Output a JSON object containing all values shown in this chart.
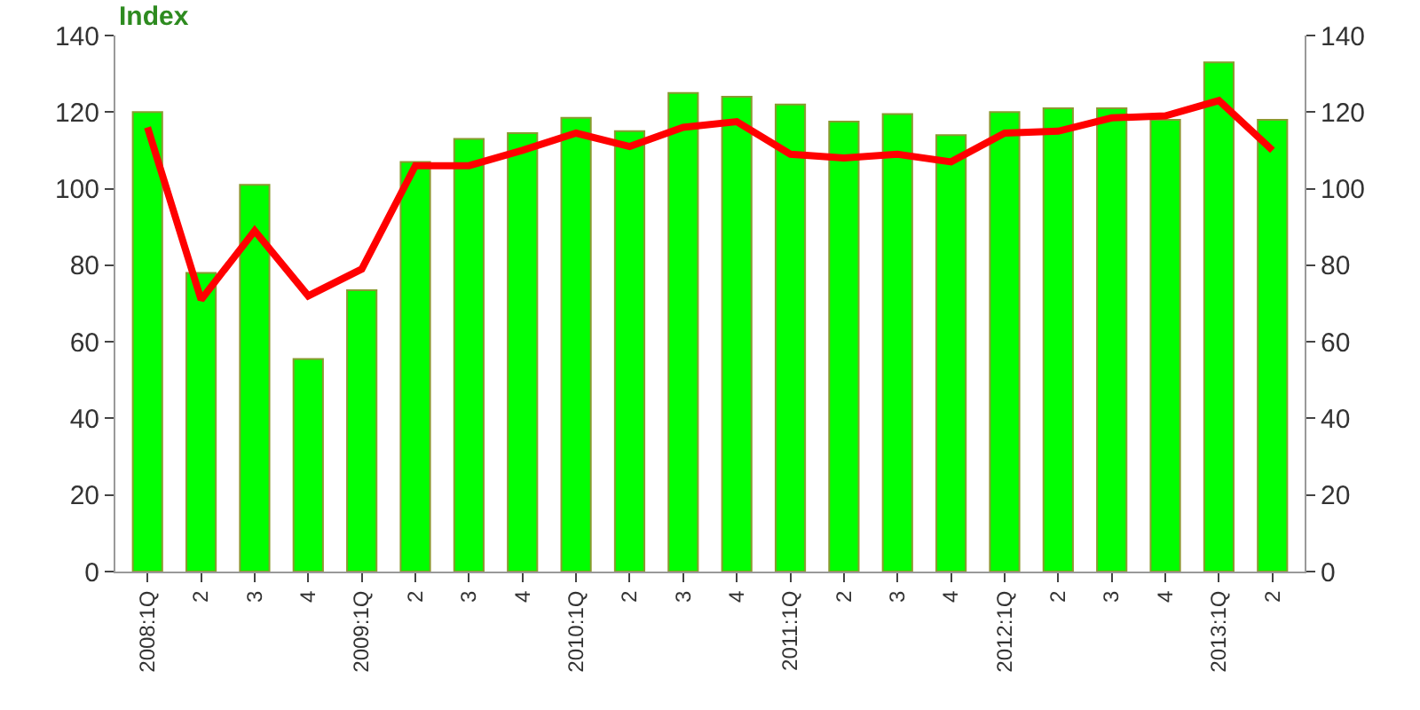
{
  "chart_data": {
    "type": "bar",
    "ylabel": "Index",
    "categories": [
      "2008:1Q",
      "2",
      "3",
      "4",
      "2009:1Q",
      "2",
      "3",
      "4",
      "2010:1Q",
      "2",
      "3",
      "4",
      "2011:1Q",
      "2",
      "3",
      "4",
      "2012:1Q",
      "2",
      "3",
      "4",
      "2013:1Q",
      "2"
    ],
    "series": [
      {
        "color": "#00ff00",
        "values": [
          120,
          78,
          101,
          55.5,
          73.5,
          107,
          113,
          114.5,
          118.5,
          115,
          125,
          124,
          122,
          117.5,
          119.5,
          114,
          120,
          121,
          121,
          118,
          133,
          118
        ]
      },
      {
        "type": "line",
        "axis": "y2",
        "color": "#ff0000",
        "values": [
          116,
          71,
          89,
          72,
          79,
          106,
          106,
          110,
          114.5,
          111,
          116,
          117.5,
          109,
          108,
          109,
          107,
          114.5,
          115,
          118.5,
          119,
          123,
          110
        ]
      }
    ],
    "ylim": [
      0,
      140
    ],
    "yticks": [
      0,
      20,
      40,
      60,
      80,
      100,
      120,
      140
    ],
    "y2lim": [
      0,
      140
    ],
    "y2ticks": [
      0,
      20,
      40,
      60,
      80,
      100,
      120,
      140
    ],
    "marker": "none",
    "line_style": "solid"
  }
}
